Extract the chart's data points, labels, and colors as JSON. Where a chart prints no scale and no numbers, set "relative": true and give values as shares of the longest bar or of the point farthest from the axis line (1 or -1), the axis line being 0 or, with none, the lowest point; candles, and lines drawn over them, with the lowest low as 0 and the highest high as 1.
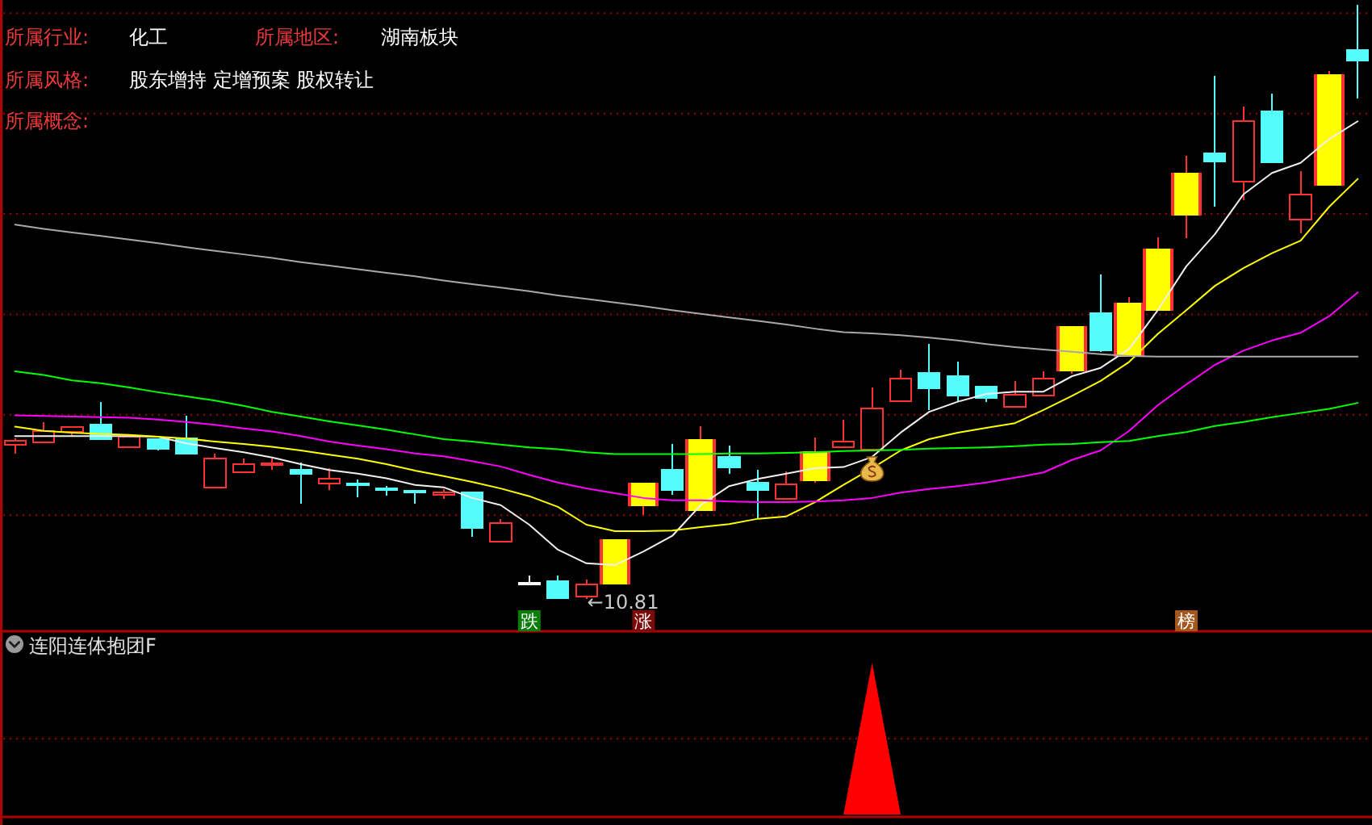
{
  "chart_data": [
    {
      "type": "candlestick",
      "relative": true,
      "color": "#ff3232",
      "categories": [
        null,
        null,
        null,
        null,
        null,
        null,
        null,
        null,
        null,
        null,
        null,
        null,
        null,
        null,
        null,
        null,
        null,
        null,
        null,
        null,
        null,
        null,
        null,
        null,
        null,
        null,
        null,
        null,
        null,
        null,
        null,
        null,
        null,
        null,
        null,
        null,
        null,
        null,
        null,
        null,
        null,
        null,
        null,
        null,
        null,
        null,
        null,
        null
      ],
      "ohlc": [
        [
          0.259,
          0.27,
          0.245,
          0.266
        ],
        [
          0.264,
          0.298,
          0.262,
          0.282
        ],
        [
          0.281,
          0.29,
          0.274,
          0.29
        ],
        [
          0.293,
          0.332,
          0.267,
          0.269
        ],
        [
          0.256,
          0.273,
          0.254,
          0.273
        ],
        [
          0.269,
          0.269,
          0.25,
          0.253
        ],
        [
          0.27,
          0.309,
          0.245,
          0.245
        ],
        [
          0.187,
          0.245,
          0.187,
          0.236
        ],
        [
          0.213,
          0.236,
          0.213,
          0.227
        ],
        [
          0.225,
          0.236,
          0.217,
          0.228
        ],
        [
          0.217,
          0.229,
          0.161,
          0.21
        ],
        [
          0.194,
          0.22,
          0.183,
          0.203
        ],
        [
          0.194,
          0.201,
          0.171,
          0.191
        ],
        [
          0.186,
          0.19,
          0.174,
          0.184
        ],
        [
          0.182,
          0.182,
          0.161,
          0.18
        ],
        [
          0.175,
          0.185,
          0.169,
          0.179
        ],
        [
          0.179,
          0.179,
          0.104,
          0.12
        ],
        [
          0.096,
          0.134,
          0.096,
          0.128
        ],
        [
          0.027,
          0.039,
          0.027,
          0.027
        ],
        [
          0.03,
          0.039,
          0.001,
          0.001
        ],
        [
          0.004,
          0.033,
          0,
          0.024
        ],
        [
          0.025,
          0.101,
          0.025,
          0.101
        ],
        [
          0.156,
          0.196,
          0.141,
          0.196
        ],
        [
          0.217,
          0.261,
          0.175,
          0.183
        ],
        [
          0.148,
          0.291,
          0.148,
          0.269
        ],
        [
          0.239,
          0.258,
          0.211,
          0.221
        ],
        [
          0.196,
          0.217,
          0.134,
          0.183
        ],
        [
          0.169,
          0.215,
          0.169,
          0.193
        ],
        [
          0.199,
          0.272,
          0.196,
          0.249
        ],
        [
          0.255,
          0.302,
          0.255,
          0.265
        ],
        [
          0.252,
          0.356,
          0.252,
          0.32
        ],
        [
          0.333,
          0.386,
          0.333,
          0.371
        ],
        [
          0.38,
          0.429,
          0.318,
          0.354
        ],
        [
          0.375,
          0.399,
          0.331,
          0.343
        ],
        [
          0.358,
          0.358,
          0.331,
          0.338
        ],
        [
          0.324,
          0.367,
          0.324,
          0.344
        ],
        [
          0.342,
          0.383,
          0.342,
          0.371
        ],
        [
          0.383,
          0.459,
          0.379,
          0.459
        ],
        [
          0.481,
          0.546,
          0.416,
          0.419
        ],
        [
          0.408,
          0.508,
          0.408,
          0.498
        ],
        [
          0.485,
          0.609,
          0.485,
          0.59
        ],
        [
          0.645,
          0.746,
          0.607,
          0.717
        ],
        [
          0.75,
          0.88,
          0.661,
          0.736
        ],
        [
          0.702,
          0.829,
          0.671,
          0.804
        ],
        [
          0.821,
          0.851,
          0.735,
          0.735
        ],
        [
          0.639,
          0.72,
          0.616,
          0.681
        ],
        [
          0.696,
          0.889,
          0.696,
          0.883
        ],
        [
          0.924,
          1,
          0.843,
          0.906
        ]
      ],
      "colors": [
        "#ff3232",
        "#ff3232",
        "#ff3232",
        "#54fcfc",
        "#ff3232",
        "#54fcfc",
        "#54fcfc",
        "#ff3232",
        "#ff3232",
        "#ff3232",
        "#54fcfc",
        "#ff3232",
        "#54fcfc",
        "#54fcfc",
        "#54fcfc",
        "#ff3232",
        "#54fcfc",
        "#ff3232",
        "#ffffff",
        "#54fcfc",
        "#ff3232",
        "#ffff00",
        "#ffff00",
        "#54fcfc",
        "#ffff00",
        "#54fcfc",
        "#54fcfc",
        "#ff3232",
        "#ffff00",
        "#ff3232",
        "#ff3232",
        "#ff3232",
        "#54fcfc",
        "#54fcfc",
        "#54fcfc",
        "#ff3232",
        "#ff3232",
        "#ffff00",
        "#54fcfc",
        "#ffff00",
        "#ffff00",
        "#ffff00",
        "#54fcfc",
        "#ff3232",
        "#54fcfc",
        "#ff3232",
        "#ffff00",
        "#54fcfc"
      ],
      "series": [
        {
          "type": "line",
          "color": "#f0f0f0",
          "values": [
            0.274,
            0.274,
            0.274,
            0.274,
            0.274,
            0.273,
            0.262,
            0.254,
            0.247,
            0.238,
            0.227,
            0.217,
            0.211,
            0.203,
            0.192,
            0.188,
            0.17,
            0.158,
            0.125,
            0.083,
            0.06,
            0.057,
            0.08,
            0.106,
            0.158,
            0.19,
            0.202,
            0.211,
            0.22,
            0.222,
            0.239,
            0.28,
            0.315,
            0.332,
            0.345,
            0.349,
            0.349,
            0.375,
            0.389,
            0.421,
            0.486,
            0.56,
            0.614,
            0.681,
            0.717,
            0.734,
            0.774,
            0.804
          ]
        },
        {
          "type": "line",
          "color": "#ffff00",
          "values": [
            0.29,
            0.283,
            0.28,
            0.278,
            0.276,
            0.273,
            0.27,
            0.265,
            0.261,
            0.256,
            0.25,
            0.243,
            0.236,
            0.227,
            0.216,
            0.207,
            0.197,
            0.186,
            0.173,
            0.155,
            0.125,
            0.114,
            0.114,
            0.115,
            0.121,
            0.126,
            0.135,
            0.139,
            0.163,
            0.192,
            0.22,
            0.25,
            0.269,
            0.28,
            0.288,
            0.296,
            0.318,
            0.342,
            0.367,
            0.399,
            0.446,
            0.486,
            0.527,
            0.557,
            0.582,
            0.603,
            0.66,
            0.707
          ]
        },
        {
          "type": "line",
          "color": "#ff00ff",
          "values": [
            0.309,
            0.308,
            0.307,
            0.306,
            0.305,
            0.302,
            0.298,
            0.293,
            0.287,
            0.282,
            0.274,
            0.265,
            0.258,
            0.252,
            0.245,
            0.24,
            0.232,
            0.223,
            0.209,
            0.196,
            0.186,
            0.178,
            0.17,
            0.166,
            0.166,
            0.164,
            0.163,
            0.163,
            0.164,
            0.166,
            0.17,
            0.179,
            0.185,
            0.19,
            0.196,
            0.204,
            0.213,
            0.234,
            0.25,
            0.283,
            0.326,
            0.361,
            0.394,
            0.418,
            0.435,
            0.448,
            0.476,
            0.516
          ]
        },
        {
          "type": "line",
          "color": "#00ff00",
          "values": [
            0.383,
            0.377,
            0.368,
            0.363,
            0.356,
            0.348,
            0.341,
            0.334,
            0.325,
            0.315,
            0.307,
            0.299,
            0.292,
            0.285,
            0.277,
            0.269,
            0.265,
            0.26,
            0.255,
            0.252,
            0.247,
            0.244,
            0.244,
            0.244,
            0.244,
            0.245,
            0.245,
            0.246,
            0.247,
            0.249,
            0.25,
            0.251,
            0.253,
            0.254,
            0.255,
            0.257,
            0.26,
            0.261,
            0.264,
            0.266,
            0.274,
            0.281,
            0.291,
            0.298,
            0.306,
            0.313,
            0.32,
            0.33
          ]
        },
        {
          "type": "line",
          "color": "#a8a8a8",
          "values": [
            0.63,
            0.623,
            0.617,
            0.611,
            0.605,
            0.599,
            0.592,
            0.586,
            0.58,
            0.574,
            0.567,
            0.561,
            0.555,
            0.549,
            0.543,
            0.536,
            0.53,
            0.524,
            0.518,
            0.511,
            0.505,
            0.499,
            0.493,
            0.486,
            0.48,
            0.474,
            0.468,
            0.462,
            0.455,
            0.449,
            0.447,
            0.444,
            0.44,
            0.435,
            0.429,
            0.424,
            0.42,
            0.416,
            0.412,
            0.409,
            0.408,
            0.408,
            0.408,
            0.408,
            0.408,
            0.408,
            0.408,
            0.408
          ]
        }
      ],
      "ref_lines": [
        {
          "axis": "y",
          "value": 0.986,
          "color": "#a00000",
          "line_style": "dotted"
        },
        {
          "axis": "y",
          "value": 0.817,
          "color": "#a00000",
          "line_style": "dotted"
        },
        {
          "axis": "y",
          "value": 0.648,
          "color": "#a00000",
          "line_style": "dotted"
        },
        {
          "axis": "y",
          "value": 0.479,
          "color": "#a00000",
          "line_style": "dotted"
        },
        {
          "axis": "y",
          "value": 0.31,
          "color": "#a00000",
          "line_style": "dotted"
        },
        {
          "axis": "y",
          "value": 0.141,
          "color": "#a00000",
          "line_style": "dotted"
        }
      ],
      "annotations": [
        "所属行业:",
        "化工",
        "所属地区:",
        "湖南板块",
        "所属风格:",
        "股东增持 定增预案 股权转让",
        "所属概念:",
        "←10.81",
        "跌",
        "涨",
        "榜"
      ]
    },
    {
      "type": "area",
      "title": "连阳连体抱团F",
      "relative": true,
      "color": "#ff0000",
      "categories": [
        null,
        null,
        null,
        null,
        null,
        null,
        null,
        null,
        null,
        null,
        null,
        null,
        null,
        null,
        null,
        null,
        null,
        null,
        null,
        null,
        null,
        null,
        null,
        null,
        null,
        null,
        null,
        null,
        null,
        null,
        null,
        null,
        null,
        null,
        null,
        null,
        null,
        null,
        null,
        null,
        null,
        null,
        null,
        null,
        null,
        null,
        null,
        null
      ],
      "values": [
        0,
        0,
        0,
        0,
        0,
        0,
        0,
        0,
        0,
        0,
        0,
        0,
        0,
        0,
        0,
        0,
        0,
        0,
        0,
        0,
        0,
        0,
        0,
        0,
        0,
        0,
        0,
        0,
        0,
        0,
        1,
        0,
        0,
        0,
        0,
        0,
        0,
        0,
        0,
        0,
        0,
        0,
        0,
        0,
        0,
        0,
        0,
        0
      ],
      "ref_lines": [
        {
          "axis": "y",
          "value": 0.5,
          "color": "#a00000",
          "line_style": "dotted"
        }
      ]
    }
  ]
}
